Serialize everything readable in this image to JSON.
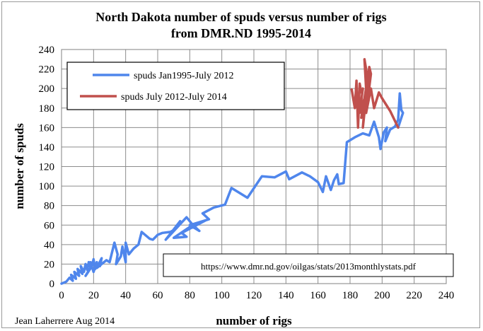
{
  "chart_data": {
    "type": "line",
    "title": [
      "North Dakota number of spuds versus number of rigs",
      "from DMR.ND 1995-2014"
    ],
    "xlabel": "number of rigs",
    "ylabel": "number of spuds",
    "xlim": [
      0,
      240
    ],
    "ylim": [
      0,
      240
    ],
    "x_ticks": [
      0,
      20,
      40,
      60,
      80,
      100,
      120,
      140,
      160,
      180,
      200,
      220,
      240
    ],
    "y_ticks": [
      0,
      20,
      40,
      60,
      80,
      100,
      120,
      140,
      160,
      180,
      200,
      220,
      240
    ],
    "grid": true,
    "legend_position": "top-left",
    "annotation": "https://www.dmr.nd.gov/oilgas/stats/2013monthlystats.pdf",
    "credit": "Jean Laherrere Aug 2014",
    "series": [
      {
        "name": "spuds Jan1995-July 2012",
        "color": "#4f86ec",
        "points": [
          [
            0,
            0
          ],
          [
            3,
            2
          ],
          [
            5,
            6
          ],
          [
            7,
            3
          ],
          [
            6,
            9
          ],
          [
            9,
            5
          ],
          [
            8,
            12
          ],
          [
            11,
            8
          ],
          [
            10,
            15
          ],
          [
            13,
            10
          ],
          [
            12,
            18
          ],
          [
            14,
            12
          ],
          [
            15,
            20
          ],
          [
            16,
            14
          ],
          [
            17,
            22
          ],
          [
            18,
            16
          ],
          [
            15,
            8
          ],
          [
            19,
            18
          ],
          [
            20,
            25
          ],
          [
            21,
            15
          ],
          [
            22,
            22
          ],
          [
            20,
            12
          ],
          [
            18,
            22
          ],
          [
            24,
            18
          ],
          [
            25,
            26
          ],
          [
            22,
            16
          ],
          [
            28,
            24
          ],
          [
            30,
            22
          ],
          [
            33,
            42
          ],
          [
            35,
            30
          ],
          [
            34,
            20
          ],
          [
            37,
            28
          ],
          [
            38,
            38
          ],
          [
            40,
            22
          ],
          [
            40,
            42
          ],
          [
            42,
            30
          ],
          [
            45,
            36
          ],
          [
            48,
            40
          ],
          [
            50,
            53
          ],
          [
            55,
            46
          ],
          [
            57,
            45
          ],
          [
            60,
            50
          ],
          [
            63,
            52
          ],
          [
            68,
            53
          ],
          [
            70,
            55
          ],
          [
            74,
            64
          ],
          [
            65,
            45
          ],
          [
            78,
            68
          ],
          [
            82,
            60
          ],
          [
            86,
            54
          ],
          [
            80,
            60
          ],
          [
            90,
            65
          ],
          [
            75,
            52
          ],
          [
            78,
            48
          ],
          [
            70,
            47
          ],
          [
            80,
            58
          ],
          [
            85,
            62
          ],
          [
            90,
            65
          ],
          [
            92,
            66
          ],
          [
            88,
            72
          ],
          [
            95,
            78
          ],
          [
            102,
            81
          ],
          [
            106,
            98
          ],
          [
            116,
            88
          ],
          [
            125,
            110
          ],
          [
            133,
            109
          ],
          [
            140,
            115
          ],
          [
            142,
            107
          ],
          [
            150,
            114
          ],
          [
            155,
            110
          ],
          [
            160,
            104
          ],
          [
            163,
            94
          ],
          [
            165,
            110
          ],
          [
            168,
            96
          ],
          [
            170,
            106
          ],
          [
            172,
            112
          ],
          [
            173,
            102
          ],
          [
            176,
            103
          ],
          [
            178,
            145
          ],
          [
            183,
            150
          ],
          [
            188,
            154
          ],
          [
            192,
            152
          ],
          [
            195,
            166
          ],
          [
            198,
            150
          ],
          [
            199,
            138
          ],
          [
            201,
            155
          ],
          [
            203,
            160
          ],
          [
            202,
            146
          ],
          [
            205,
            158
          ],
          [
            208,
            161
          ],
          [
            210,
            168
          ],
          [
            211,
            195
          ],
          [
            212,
            178
          ],
          [
            213,
            175
          ],
          [
            210,
            160
          ]
        ]
      },
      {
        "name": "spuds July 2012-July 2014",
        "color": "#c0504d",
        "points": [
          [
            181,
            199
          ],
          [
            183,
            180
          ],
          [
            184,
            208
          ],
          [
            185,
            160
          ],
          [
            186,
            205
          ],
          [
            187,
            196
          ],
          [
            188,
            200
          ],
          [
            186,
            175
          ],
          [
            189,
            190
          ],
          [
            187,
            170
          ],
          [
            191,
            210
          ],
          [
            189,
            230
          ],
          [
            190,
            200
          ],
          [
            188,
            160
          ],
          [
            192,
            222
          ],
          [
            193,
            215
          ],
          [
            190,
            175
          ],
          [
            193,
            200
          ],
          [
            195,
            180
          ],
          [
            198,
            196
          ],
          [
            200,
            190
          ],
          [
            205,
            177
          ],
          [
            210,
            160
          ]
        ]
      }
    ]
  }
}
